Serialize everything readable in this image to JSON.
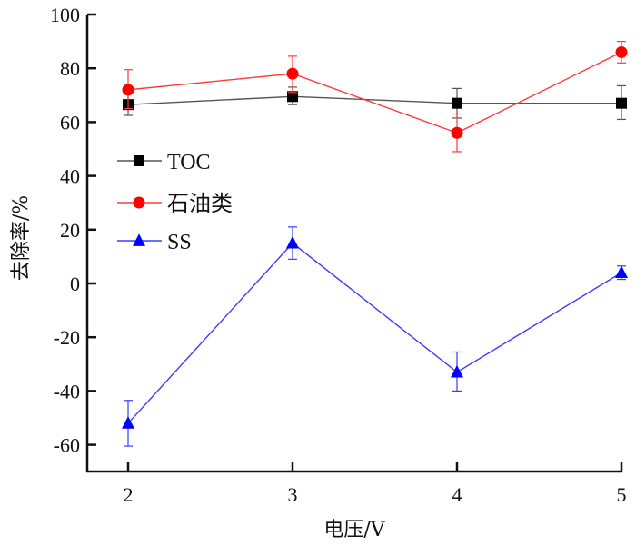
{
  "chart_data": {
    "type": "line",
    "title": "",
    "xlabel": "电压/V",
    "ylabel": "去除率/%",
    "x": [
      2,
      3,
      4,
      5
    ],
    "xticks": [
      "2",
      "3",
      "4",
      "5"
    ],
    "xlim": [
      1.75,
      5
    ],
    "ylim": [
      -70,
      100
    ],
    "yticks": [
      "-60",
      "-40",
      "-20",
      "0",
      "20",
      "40",
      "60",
      "80",
      "100"
    ],
    "ytick_values": [
      -60,
      -40,
      -20,
      0,
      20,
      40,
      60,
      80,
      100
    ],
    "grid": false,
    "legend_position": "center-left",
    "series": [
      {
        "name": "TOC",
        "color": "#000000",
        "line_color": "#555555",
        "marker": "square",
        "values": [
          66.5,
          69.5,
          67,
          67
        ],
        "error_upper": [
          71,
          73,
          72.5,
          73.5
        ],
        "error_lower": [
          62.5,
          66.5,
          61.5,
          61
        ]
      },
      {
        "name": "石油类",
        "color": "#ff0000",
        "line_color": "#ff3b3b",
        "marker": "circle",
        "values": [
          72,
          78,
          56,
          86
        ],
        "error_upper": [
          79.5,
          84.5,
          63,
          90
        ],
        "error_lower": [
          65,
          71,
          49,
          82
        ]
      },
      {
        "name": "SS",
        "color": "#0000ff",
        "line_color": "#3b3bff",
        "marker": "triangle",
        "values": [
          -52,
          15,
          -33,
          4
        ],
        "error_upper": [
          -43.5,
          21,
          -25.5,
          6.5
        ],
        "error_lower": [
          -60.5,
          9,
          -40,
          1.5
        ]
      }
    ]
  }
}
